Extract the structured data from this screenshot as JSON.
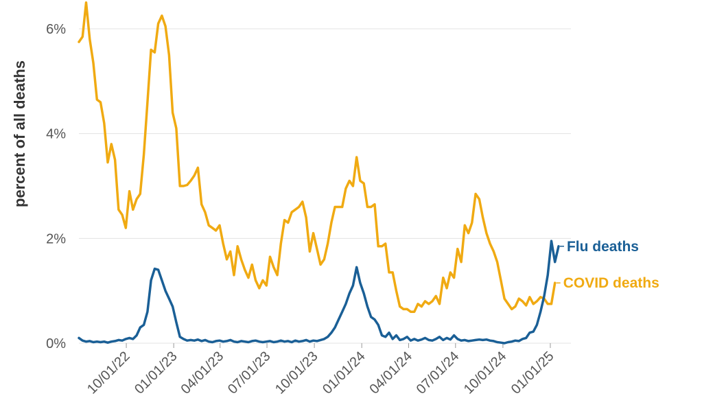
{
  "chart_data": {
    "type": "line",
    "ylabel": "percent of all deaths",
    "xlabel": "",
    "ylim": [
      0,
      6.6
    ],
    "y_ticks": [
      0,
      2,
      4,
      6
    ],
    "y_tick_labels": [
      "0%",
      "2%",
      "4%",
      "6%"
    ],
    "x_range": [
      "2022-07-01",
      "2025-02-10"
    ],
    "x_ticks": [
      "2022-10-01",
      "2023-01-01",
      "2023-04-01",
      "2023-07-01",
      "2023-10-01",
      "2024-01-01",
      "2024-04-01",
      "2024-07-01",
      "2024-10-01",
      "2025-01-01"
    ],
    "x_tick_labels": [
      "10/01/22",
      "01/01/23",
      "04/01/23",
      "07/01/23",
      "10/01/23",
      "01/01/24",
      "04/01/24",
      "07/01/24",
      "10/01/24",
      "01/01/25"
    ],
    "grid": "horizontal",
    "series": [
      {
        "name": "COVID deaths",
        "label": "COVID deaths",
        "color": "#f0aa12",
        "points": [
          [
            "2022-07-01",
            5.75
          ],
          [
            "2022-07-08",
            5.85
          ],
          [
            "2022-07-15",
            6.5
          ],
          [
            "2022-07-22",
            5.8
          ],
          [
            "2022-07-29",
            5.35
          ],
          [
            "2022-08-05",
            4.65
          ],
          [
            "2022-08-12",
            4.6
          ],
          [
            "2022-08-19",
            4.2
          ],
          [
            "2022-08-26",
            3.45
          ],
          [
            "2022-09-02",
            3.8
          ],
          [
            "2022-09-09",
            3.5
          ],
          [
            "2022-09-16",
            2.55
          ],
          [
            "2022-09-23",
            2.45
          ],
          [
            "2022-09-30",
            2.2
          ],
          [
            "2022-10-07",
            2.9
          ],
          [
            "2022-10-14",
            2.55
          ],
          [
            "2022-10-21",
            2.75
          ],
          [
            "2022-10-28",
            2.85
          ],
          [
            "2022-11-04",
            3.6
          ],
          [
            "2022-11-11",
            4.6
          ],
          [
            "2022-11-18",
            5.6
          ],
          [
            "2022-11-25",
            5.55
          ],
          [
            "2022-12-02",
            6.1
          ],
          [
            "2022-12-09",
            6.25
          ],
          [
            "2022-12-16",
            6.05
          ],
          [
            "2022-12-23",
            5.5
          ],
          [
            "2022-12-30",
            4.4
          ],
          [
            "2023-01-06",
            4.1
          ],
          [
            "2023-01-13",
            3.0
          ],
          [
            "2023-01-20",
            3.0
          ],
          [
            "2023-01-27",
            3.02
          ],
          [
            "2023-02-03",
            3.1
          ],
          [
            "2023-02-10",
            3.2
          ],
          [
            "2023-02-17",
            3.35
          ],
          [
            "2023-02-24",
            2.65
          ],
          [
            "2023-03-03",
            2.5
          ],
          [
            "2023-03-10",
            2.25
          ],
          [
            "2023-03-17",
            2.2
          ],
          [
            "2023-03-24",
            2.15
          ],
          [
            "2023-03-31",
            2.25
          ],
          [
            "2023-04-07",
            1.9
          ],
          [
            "2023-04-14",
            1.6
          ],
          [
            "2023-04-21",
            1.75
          ],
          [
            "2023-04-28",
            1.3
          ],
          [
            "2023-05-05",
            1.85
          ],
          [
            "2023-05-12",
            1.6
          ],
          [
            "2023-05-19",
            1.4
          ],
          [
            "2023-05-26",
            1.25
          ],
          [
            "2023-06-02",
            1.5
          ],
          [
            "2023-06-09",
            1.2
          ],
          [
            "2023-06-16",
            1.05
          ],
          [
            "2023-06-23",
            1.2
          ],
          [
            "2023-06-30",
            1.1
          ],
          [
            "2023-07-07",
            1.65
          ],
          [
            "2023-07-14",
            1.45
          ],
          [
            "2023-07-21",
            1.3
          ],
          [
            "2023-07-28",
            1.9
          ],
          [
            "2023-08-04",
            2.35
          ],
          [
            "2023-08-11",
            2.3
          ],
          [
            "2023-08-18",
            2.5
          ],
          [
            "2023-08-25",
            2.55
          ],
          [
            "2023-09-01",
            2.6
          ],
          [
            "2023-09-08",
            2.7
          ],
          [
            "2023-09-15",
            2.4
          ],
          [
            "2023-09-22",
            1.75
          ],
          [
            "2023-09-29",
            2.1
          ],
          [
            "2023-10-06",
            1.8
          ],
          [
            "2023-10-13",
            1.5
          ],
          [
            "2023-10-20",
            1.6
          ],
          [
            "2023-10-27",
            1.9
          ],
          [
            "2023-11-03",
            2.3
          ],
          [
            "2023-11-10",
            2.6
          ],
          [
            "2023-11-17",
            2.6
          ],
          [
            "2023-11-24",
            2.6
          ],
          [
            "2023-12-01",
            2.95
          ],
          [
            "2023-12-08",
            3.1
          ],
          [
            "2023-12-15",
            3.0
          ],
          [
            "2023-12-22",
            3.55
          ],
          [
            "2023-12-29",
            3.1
          ],
          [
            "2024-01-05",
            3.05
          ],
          [
            "2024-01-12",
            2.6
          ],
          [
            "2024-01-19",
            2.6
          ],
          [
            "2024-01-26",
            2.65
          ],
          [
            "2024-02-02",
            1.85
          ],
          [
            "2024-02-09",
            1.85
          ],
          [
            "2024-02-16",
            1.9
          ],
          [
            "2024-02-23",
            1.35
          ],
          [
            "2024-03-01",
            1.35
          ],
          [
            "2024-03-08",
            1.0
          ],
          [
            "2024-03-15",
            0.7
          ],
          [
            "2024-03-22",
            0.65
          ],
          [
            "2024-03-29",
            0.65
          ],
          [
            "2024-04-05",
            0.6
          ],
          [
            "2024-04-12",
            0.6
          ],
          [
            "2024-04-19",
            0.75
          ],
          [
            "2024-04-26",
            0.7
          ],
          [
            "2024-05-03",
            0.8
          ],
          [
            "2024-05-10",
            0.75
          ],
          [
            "2024-05-17",
            0.8
          ],
          [
            "2024-05-24",
            0.9
          ],
          [
            "2024-05-31",
            0.75
          ],
          [
            "2024-06-07",
            1.25
          ],
          [
            "2024-06-14",
            1.05
          ],
          [
            "2024-06-21",
            1.35
          ],
          [
            "2024-06-28",
            1.25
          ],
          [
            "2024-07-05",
            1.8
          ],
          [
            "2024-07-12",
            1.55
          ],
          [
            "2024-07-19",
            2.25
          ],
          [
            "2024-07-26",
            2.1
          ],
          [
            "2024-08-02",
            2.3
          ],
          [
            "2024-08-09",
            2.85
          ],
          [
            "2024-08-16",
            2.75
          ],
          [
            "2024-08-23",
            2.4
          ],
          [
            "2024-08-30",
            2.1
          ],
          [
            "2024-09-06",
            1.9
          ],
          [
            "2024-09-13",
            1.75
          ],
          [
            "2024-09-20",
            1.55
          ],
          [
            "2024-09-27",
            1.2
          ],
          [
            "2024-10-04",
            0.85
          ],
          [
            "2024-10-11",
            0.75
          ],
          [
            "2024-10-18",
            0.65
          ],
          [
            "2024-10-25",
            0.7
          ],
          [
            "2024-11-01",
            0.85
          ],
          [
            "2024-11-08",
            0.8
          ],
          [
            "2024-11-15",
            0.72
          ],
          [
            "2024-11-22",
            0.88
          ],
          [
            "2024-11-29",
            0.75
          ],
          [
            "2024-12-06",
            0.8
          ],
          [
            "2024-12-13",
            0.88
          ],
          [
            "2024-12-20",
            0.85
          ],
          [
            "2024-12-27",
            0.75
          ],
          [
            "2025-01-03",
            0.75
          ],
          [
            "2025-01-10",
            1.15
          ]
        ]
      },
      {
        "name": "Flu deaths",
        "label": "Flu deaths",
        "color": "#1a5f96",
        "points": [
          [
            "2022-07-01",
            0.1
          ],
          [
            "2022-07-08",
            0.05
          ],
          [
            "2022-07-15",
            0.03
          ],
          [
            "2022-07-22",
            0.04
          ],
          [
            "2022-07-29",
            0.02
          ],
          [
            "2022-08-05",
            0.03
          ],
          [
            "2022-08-12",
            0.02
          ],
          [
            "2022-08-19",
            0.03
          ],
          [
            "2022-08-26",
            0.01
          ],
          [
            "2022-09-02",
            0.03
          ],
          [
            "2022-09-09",
            0.04
          ],
          [
            "2022-09-16",
            0.06
          ],
          [
            "2022-09-23",
            0.05
          ],
          [
            "2022-09-30",
            0.08
          ],
          [
            "2022-10-07",
            0.1
          ],
          [
            "2022-10-14",
            0.08
          ],
          [
            "2022-10-21",
            0.15
          ],
          [
            "2022-10-28",
            0.3
          ],
          [
            "2022-11-04",
            0.35
          ],
          [
            "2022-11-11",
            0.6
          ],
          [
            "2022-11-18",
            1.2
          ],
          [
            "2022-11-25",
            1.42
          ],
          [
            "2022-12-02",
            1.4
          ],
          [
            "2022-12-09",
            1.2
          ],
          [
            "2022-12-16",
            1.0
          ],
          [
            "2022-12-23",
            0.85
          ],
          [
            "2022-12-30",
            0.7
          ],
          [
            "2023-01-06",
            0.4
          ],
          [
            "2023-01-13",
            0.12
          ],
          [
            "2023-01-20",
            0.08
          ],
          [
            "2023-01-27",
            0.05
          ],
          [
            "2023-02-03",
            0.06
          ],
          [
            "2023-02-10",
            0.05
          ],
          [
            "2023-02-17",
            0.07
          ],
          [
            "2023-02-24",
            0.04
          ],
          [
            "2023-03-03",
            0.06
          ],
          [
            "2023-03-10",
            0.03
          ],
          [
            "2023-03-17",
            0.02
          ],
          [
            "2023-03-24",
            0.04
          ],
          [
            "2023-03-31",
            0.05
          ],
          [
            "2023-04-07",
            0.03
          ],
          [
            "2023-04-14",
            0.04
          ],
          [
            "2023-04-21",
            0.06
          ],
          [
            "2023-04-28",
            0.03
          ],
          [
            "2023-05-05",
            0.02
          ],
          [
            "2023-05-12",
            0.04
          ],
          [
            "2023-05-19",
            0.03
          ],
          [
            "2023-05-26",
            0.02
          ],
          [
            "2023-06-02",
            0.04
          ],
          [
            "2023-06-09",
            0.05
          ],
          [
            "2023-06-16",
            0.03
          ],
          [
            "2023-06-23",
            0.02
          ],
          [
            "2023-06-30",
            0.03
          ],
          [
            "2023-07-07",
            0.04
          ],
          [
            "2023-07-14",
            0.02
          ],
          [
            "2023-07-21",
            0.03
          ],
          [
            "2023-07-28",
            0.05
          ],
          [
            "2023-08-04",
            0.03
          ],
          [
            "2023-08-11",
            0.04
          ],
          [
            "2023-08-18",
            0.02
          ],
          [
            "2023-08-25",
            0.05
          ],
          [
            "2023-09-01",
            0.03
          ],
          [
            "2023-09-08",
            0.04
          ],
          [
            "2023-09-15",
            0.06
          ],
          [
            "2023-09-22",
            0.03
          ],
          [
            "2023-09-29",
            0.05
          ],
          [
            "2023-10-06",
            0.04
          ],
          [
            "2023-10-13",
            0.06
          ],
          [
            "2023-10-20",
            0.08
          ],
          [
            "2023-10-27",
            0.12
          ],
          [
            "2023-11-03",
            0.2
          ],
          [
            "2023-11-10",
            0.3
          ],
          [
            "2023-11-17",
            0.45
          ],
          [
            "2023-11-24",
            0.6
          ],
          [
            "2023-12-01",
            0.75
          ],
          [
            "2023-12-08",
            0.95
          ],
          [
            "2023-12-15",
            1.1
          ],
          [
            "2023-12-22",
            1.45
          ],
          [
            "2023-12-29",
            1.15
          ],
          [
            "2024-01-05",
            0.95
          ],
          [
            "2024-01-12",
            0.7
          ],
          [
            "2024-01-19",
            0.5
          ],
          [
            "2024-01-26",
            0.45
          ],
          [
            "2024-02-02",
            0.35
          ],
          [
            "2024-02-09",
            0.15
          ],
          [
            "2024-02-16",
            0.12
          ],
          [
            "2024-02-23",
            0.2
          ],
          [
            "2024-03-01",
            0.08
          ],
          [
            "2024-03-08",
            0.15
          ],
          [
            "2024-03-15",
            0.06
          ],
          [
            "2024-03-22",
            0.08
          ],
          [
            "2024-03-29",
            0.12
          ],
          [
            "2024-04-05",
            0.05
          ],
          [
            "2024-04-12",
            0.08
          ],
          [
            "2024-04-19",
            0.05
          ],
          [
            "2024-04-26",
            0.07
          ],
          [
            "2024-05-03",
            0.1
          ],
          [
            "2024-05-10",
            0.06
          ],
          [
            "2024-05-17",
            0.05
          ],
          [
            "2024-05-24",
            0.08
          ],
          [
            "2024-05-31",
            0.12
          ],
          [
            "2024-06-07",
            0.06
          ],
          [
            "2024-06-14",
            0.1
          ],
          [
            "2024-06-21",
            0.07
          ],
          [
            "2024-06-28",
            0.15
          ],
          [
            "2024-07-05",
            0.08
          ],
          [
            "2024-07-12",
            0.05
          ],
          [
            "2024-07-19",
            0.06
          ],
          [
            "2024-07-26",
            0.04
          ],
          [
            "2024-08-02",
            0.05
          ],
          [
            "2024-08-09",
            0.06
          ],
          [
            "2024-08-16",
            0.07
          ],
          [
            "2024-08-23",
            0.06
          ],
          [
            "2024-08-30",
            0.07
          ],
          [
            "2024-09-06",
            0.05
          ],
          [
            "2024-09-13",
            0.04
          ],
          [
            "2024-09-20",
            0.02
          ],
          [
            "2024-09-27",
            0.01
          ],
          [
            "2024-10-04",
            0.0
          ],
          [
            "2024-10-11",
            0.02
          ],
          [
            "2024-10-18",
            0.03
          ],
          [
            "2024-10-25",
            0.05
          ],
          [
            "2024-11-01",
            0.04
          ],
          [
            "2024-11-08",
            0.08
          ],
          [
            "2024-11-15",
            0.1
          ],
          [
            "2024-11-22",
            0.2
          ],
          [
            "2024-11-29",
            0.22
          ],
          [
            "2024-12-06",
            0.35
          ],
          [
            "2024-12-13",
            0.6
          ],
          [
            "2024-12-20",
            0.9
          ],
          [
            "2024-12-27",
            1.3
          ],
          [
            "2025-01-03",
            1.95
          ],
          [
            "2025-01-10",
            1.55
          ],
          [
            "2025-01-17",
            1.85
          ]
        ]
      }
    ]
  }
}
